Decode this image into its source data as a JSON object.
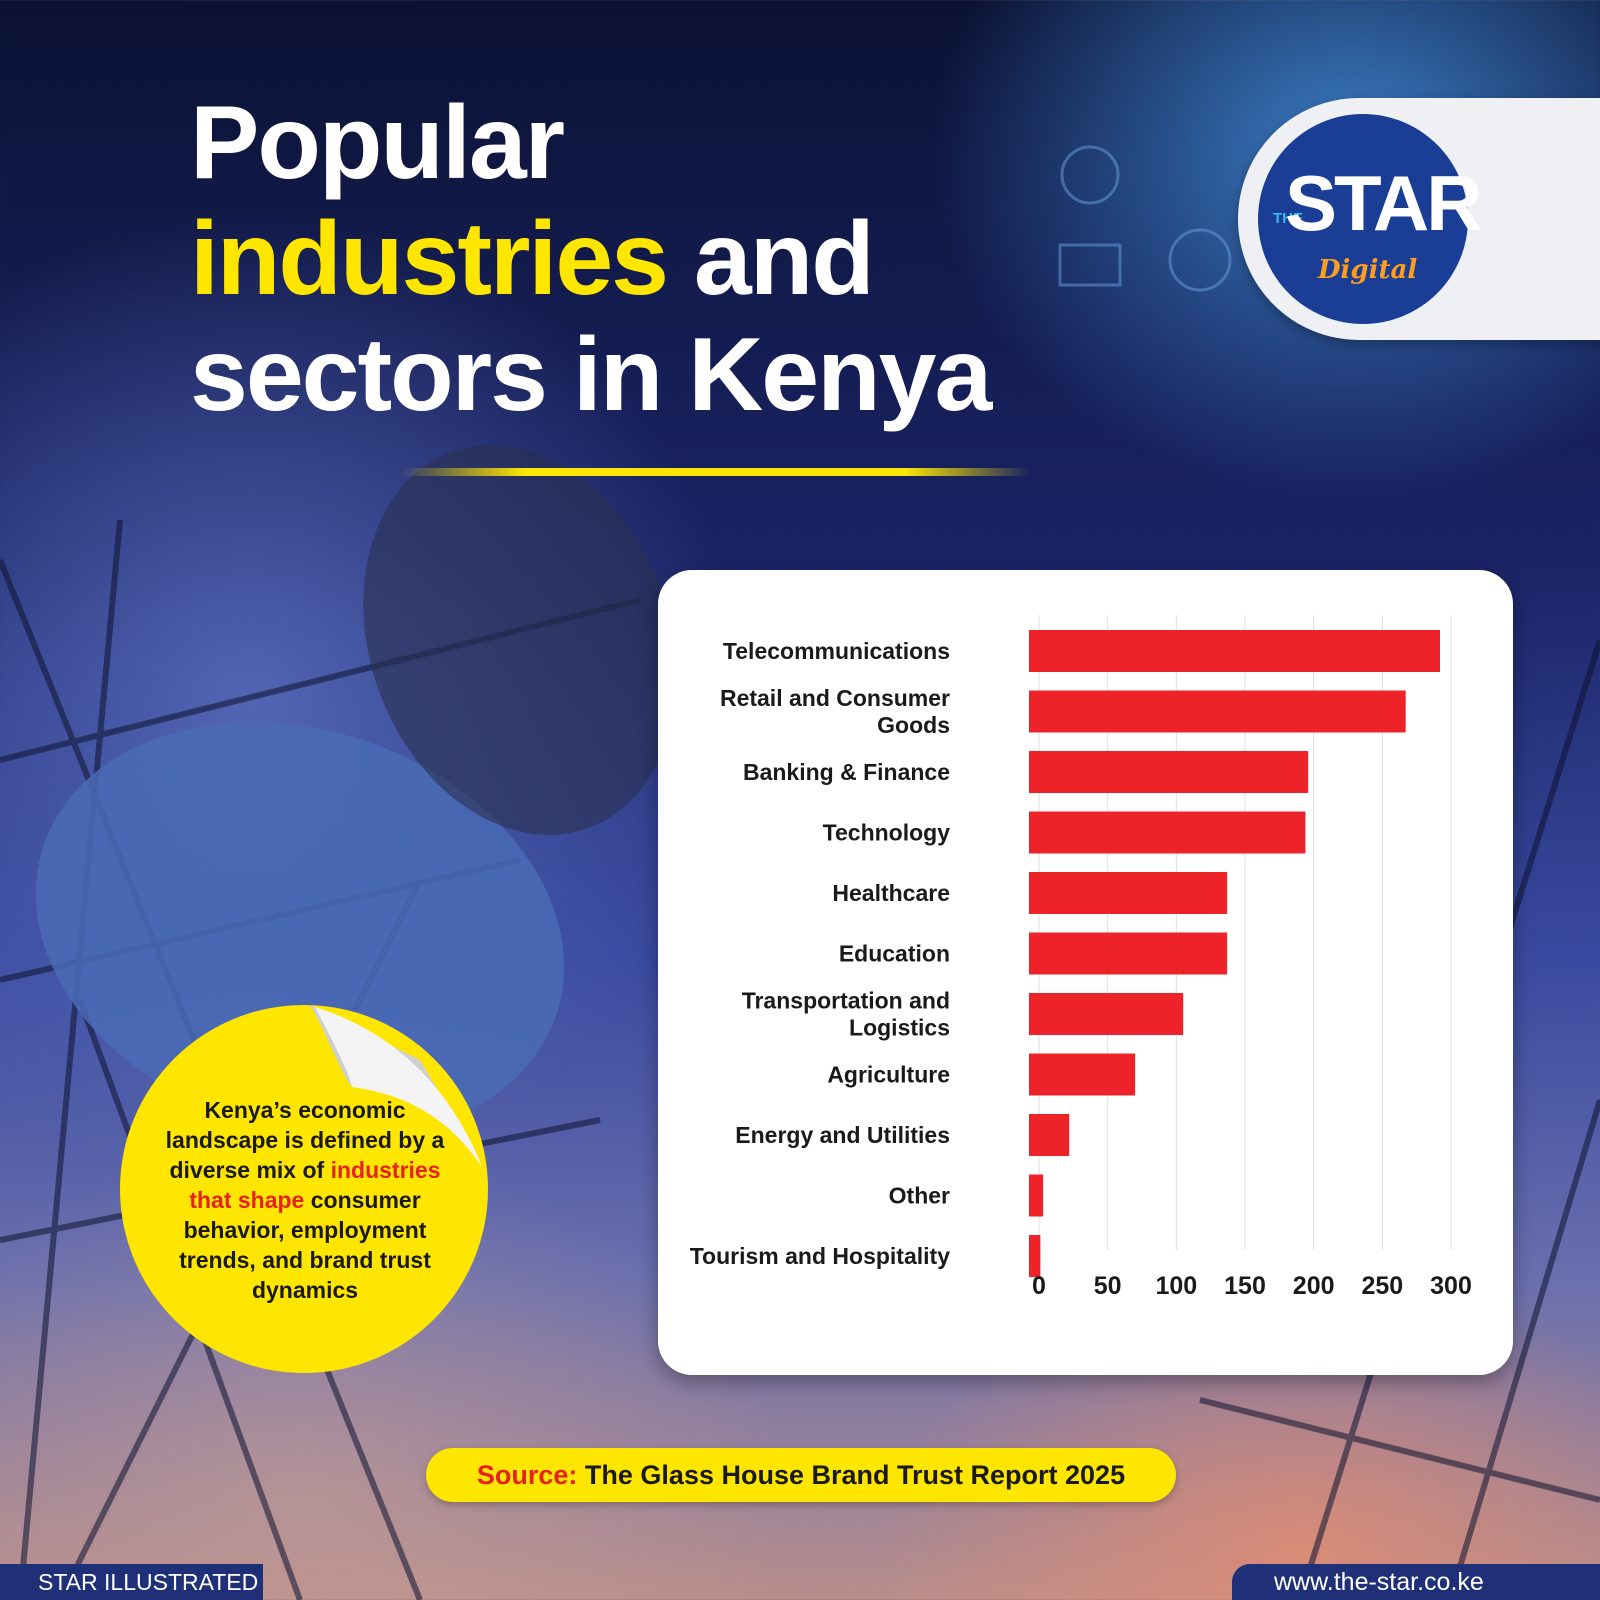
{
  "title": {
    "line1": "Popular",
    "line2_highlight": "industries",
    "line2_rest": " and",
    "line3": "sectors in Kenya"
  },
  "logo": {
    "the": "THE",
    "star": "STAR",
    "digital": "Digital"
  },
  "sticker": {
    "before": "Kenya’s economic landscape is defined by a diverse mix of ",
    "highlight": "industries that shape",
    "after": " consumer behavior, employment trends, and brand trust dynamics"
  },
  "source": {
    "label": "Source:",
    "text": " The Glass House Brand Trust Report 2025"
  },
  "footer": {
    "left": "STAR ILLUSTRATED",
    "right": "www.the-star.co.ke"
  },
  "colors": {
    "bar": "#ee2329",
    "accent_yellow": "#ffe600",
    "navy": "#1f2f78"
  },
  "chart_data": {
    "type": "bar",
    "orientation": "horizontal",
    "categories": [
      [
        "Telecommunications"
      ],
      [
        "Retail and Consumer",
        "Goods"
      ],
      [
        "Banking & Finance"
      ],
      [
        "Technology"
      ],
      [
        "Healthcare"
      ],
      [
        "Education"
      ],
      [
        "Transportation and",
        "Logistics"
      ],
      [
        "Agriculture"
      ],
      [
        "Energy and Utilities"
      ],
      [
        "Other"
      ],
      [
        "Tourism and Hospitality"
      ]
    ],
    "values": [
      292,
      267,
      196,
      194,
      137,
      137,
      105,
      70,
      22,
      3,
      1
    ],
    "xlim": [
      0,
      300
    ],
    "xticks": [
      0,
      50,
      100,
      150,
      200,
      250,
      300
    ],
    "grid": true,
    "title": "",
    "xlabel": "",
    "ylabel": ""
  }
}
